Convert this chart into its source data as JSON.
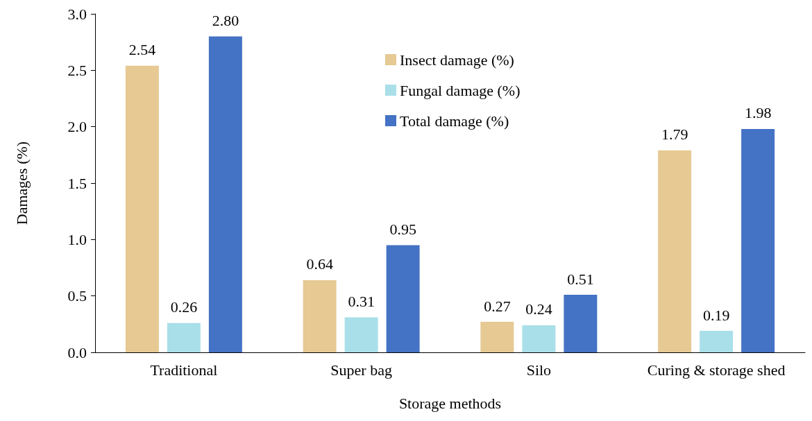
{
  "chart_data": {
    "type": "bar",
    "xlabel": "Storage methods",
    "ylabel": "Damages (%)",
    "categories": [
      "Traditional",
      "Super bag",
      "Silo",
      "Curing & storage shed"
    ],
    "series": [
      {
        "name": "Insect damage (%)",
        "color": "#e6c993",
        "values": [
          2.54,
          0.64,
          0.27,
          1.79
        ],
        "value_labels": [
          "2.54",
          "0.64",
          "0.27",
          "1.79"
        ]
      },
      {
        "name": "Fungal damage (%)",
        "color": "#a9dfe9",
        "values": [
          0.26,
          0.31,
          0.24,
          0.19
        ],
        "value_labels": [
          "0.26",
          "0.31",
          "0.24",
          "0.19"
        ]
      },
      {
        "name": "Total damage (%)",
        "color": "#4472c4",
        "values": [
          2.8,
          0.95,
          0.51,
          1.98
        ],
        "value_labels": [
          "2.80",
          "0.95",
          "0.51",
          "1.98"
        ]
      }
    ],
    "ylim": [
      0,
      3.0
    ],
    "yticks": [
      {
        "value": 0,
        "label": "0.0"
      },
      0.5,
      {
        "value": 1,
        "label": "1.0"
      },
      1.5,
      {
        "value": 2,
        "label": "2.0"
      },
      2.5,
      {
        "value": 3,
        "label": "3.0"
      }
    ],
    "grid": false,
    "legend": "top"
  }
}
